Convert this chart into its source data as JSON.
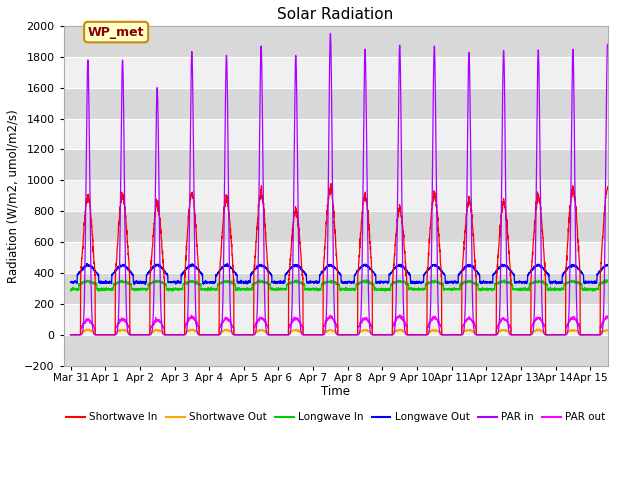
{
  "title": "Solar Radiation",
  "ylabel": "Radiation (W/m2, umol/m2/s)",
  "xlabel": "Time",
  "ylim": [
    -200,
    2000
  ],
  "yticks": [
    -200,
    0,
    200,
    400,
    600,
    800,
    1000,
    1200,
    1400,
    1600,
    1800,
    2000
  ],
  "xlim": [
    -0.2,
    15.5
  ],
  "xtick_positions": [
    0,
    1,
    2,
    3,
    4,
    5,
    6,
    7,
    8,
    9,
    10,
    11,
    12,
    13,
    14,
    15
  ],
  "xtick_labels": [
    "Mar 31",
    "Apr 1",
    "Apr 2",
    "Apr 3",
    "Apr 4",
    "Apr 5",
    "Apr 6",
    "Apr 7",
    "Apr 8",
    "Apr 9",
    "Apr 10",
    "Apr 11",
    "Apr 12",
    "Apr 13",
    "Apr 14",
    "Apr 15"
  ],
  "legend_label": "WP_met",
  "bg_color": "#ffffff",
  "plot_bg_color": "#e8e8e8",
  "grid_color": "#ffffff",
  "series_colors": {
    "shortwave_in": "red",
    "shortwave_out": "orange",
    "longwave_in": "#00cc00",
    "longwave_out": "blue",
    "par_in": "#aa00ff",
    "par_out": "#ff00ff"
  },
  "legend_entries": [
    {
      "label": "Shortwave In",
      "color": "red"
    },
    {
      "label": "Shortwave Out",
      "color": "orange"
    },
    {
      "label": "Longwave In",
      "color": "#00cc00"
    },
    {
      "label": "Longwave Out",
      "color": "blue"
    },
    {
      "label": "PAR in",
      "color": "#aa00ff"
    },
    {
      "label": "PAR out",
      "color": "#ff00ff"
    }
  ],
  "sw_in_peaks": [
    900,
    900,
    840,
    910,
    880,
    920,
    800,
    950,
    900,
    810,
    900,
    870,
    850,
    900,
    940,
    940
  ],
  "par_in_peaks": [
    1780,
    1780,
    1600,
    1835,
    1810,
    1870,
    1810,
    1950,
    1850,
    1875,
    1870,
    1830,
    1840,
    1845,
    1850,
    1880
  ],
  "par_out_peaks": [
    95,
    100,
    95,
    115,
    105,
    110,
    105,
    115,
    105,
    120,
    110,
    105,
    105,
    110,
    110,
    115
  ],
  "n_days": 16,
  "hours_per_day": 48,
  "day_start": 0.29,
  "day_end": 0.71,
  "lw_in_night": 295,
  "lw_in_day_extra": 50,
  "lw_out_night": 340,
  "lw_out_day_extra": 110
}
